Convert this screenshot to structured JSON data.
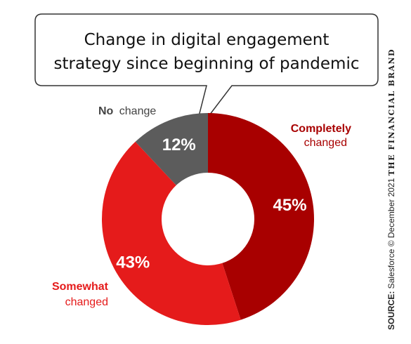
{
  "chart_data": {
    "type": "donut",
    "title_lines": [
      "Change in digital engagement",
      "strategy since beginning of pandemic"
    ],
    "slices": [
      {
        "label_bold": "Completely",
        "label_rest": "changed",
        "value": 45,
        "display": "45%",
        "color": "#a80000"
      },
      {
        "label_bold": "Somewhat",
        "label_rest": "changed",
        "value": 43,
        "display": "43%",
        "color": "#e51b1b"
      },
      {
        "label_bold": "No",
        "label_rest": "change",
        "value": 12,
        "display": "12%",
        "color": "#5c5c5c"
      }
    ]
  },
  "source": {
    "label": "SOURCE:",
    "text": "Salesforce © December 2021",
    "brand": "THE FINANCIAL BRAND"
  }
}
